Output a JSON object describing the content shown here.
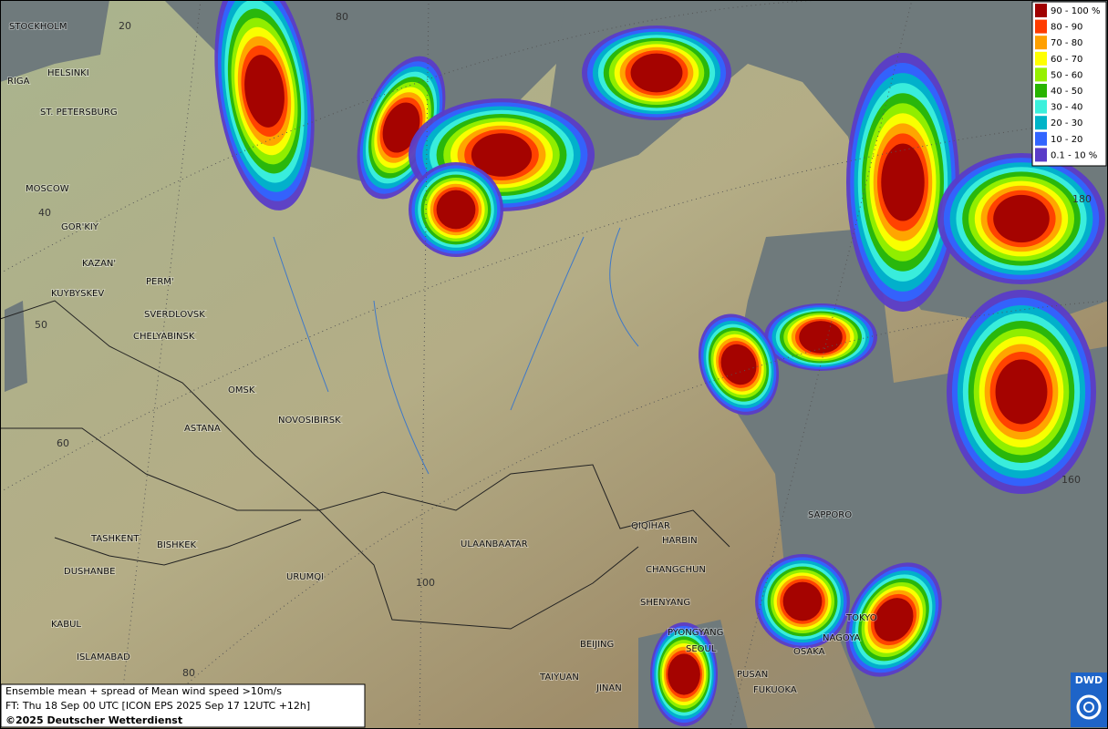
{
  "map": {
    "cities": [
      "STOCKHOLM",
      "HELSINKI",
      "RIGA",
      "ST. PETERSBURG",
      "MOSCOW",
      "GOR'KIY",
      "KAZAN'",
      "PERM'",
      "KUYBYSKEV",
      "SVERDLOVSK",
      "CHELYABINSK",
      "OMSK",
      "ASTANA",
      "NOVOSIBIRSK",
      "TASHKENT",
      "BISHKEK",
      "DUSHANBE",
      "URUMQI",
      "KABUL",
      "ISLAMABAD",
      "ULAANBAATAR",
      "QIQIHAR",
      "HARBIN",
      "CHANGCHUN",
      "SHENYANG",
      "PYONGYANG",
      "SEOUL",
      "BEIJING",
      "TAIYUAN",
      "JINAN",
      "PUSAN",
      "FUKUOKA",
      "OSAKA",
      "NAGOYA",
      "TOKYO",
      "SAPPORO"
    ],
    "graticule_labels": [
      "20",
      "80",
      "40",
      "50",
      "60",
      "100",
      "80",
      "160",
      "180"
    ],
    "legend": [
      {
        "label": "90 - 100 %",
        "color": "#a00000"
      },
      {
        "label": "80 - 90",
        "color": "#ff3c00"
      },
      {
        "label": "70 - 80",
        "color": "#ffa000"
      },
      {
        "label": "60 - 70",
        "color": "#ffff00"
      },
      {
        "label": "50 - 60",
        "color": "#96f000"
      },
      {
        "label": "40 - 50",
        "color": "#28b400"
      },
      {
        "label": "30 - 40",
        "color": "#3cf0dc"
      },
      {
        "label": "20 - 30",
        "color": "#00b4c8"
      },
      {
        "label": "10 - 20",
        "color": "#3264ff"
      },
      {
        "label": "0.1 - 10 %",
        "color": "#5a3cc8"
      }
    ],
    "info": {
      "line1": "Ensemble mean + spread of Mean wind speed >10m/s",
      "line2": "FT: Thu 18 Sep 00 UTC [ICON EPS 2025 Sep 17 12UTC +12h]",
      "line3": "©2025 Deutscher Wetterdienst"
    },
    "logo": "DWD"
  }
}
